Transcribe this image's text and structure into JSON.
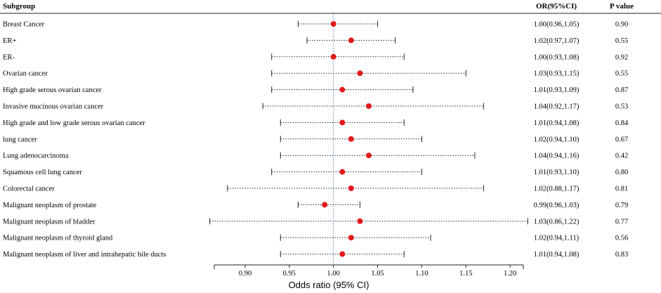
{
  "chart_data": {
    "type": "forest",
    "headers": {
      "subgroup": "Subgroup",
      "or_ci": "OR(95%CI)",
      "p_value": "P value"
    },
    "xlabel": "Odds ratio (95% CI)",
    "xlim": [
      0.865,
      1.215
    ],
    "xticks": [
      "0.90",
      "0.95",
      "1.00",
      "1.05",
      "1.10",
      "1.15",
      "1.20"
    ],
    "reference_line": 1.0,
    "point_color": "#e31a1c",
    "rows": [
      {
        "subgroup": "Breast Cancer",
        "or": 1.0,
        "lo": 0.96,
        "hi": 1.05,
        "or_ci": "1.00(0.96,1.05)",
        "p": "0.90"
      },
      {
        "subgroup": "ER+",
        "or": 1.02,
        "lo": 0.97,
        "hi": 1.07,
        "or_ci": "1.02(0.97,1.07)",
        "p": "0.55"
      },
      {
        "subgroup": "ER-",
        "or": 1.0,
        "lo": 0.93,
        "hi": 1.08,
        "or_ci": "1.00(0.93,1.08)",
        "p": "0.92"
      },
      {
        "subgroup": "Ovarian cancer",
        "or": 1.03,
        "lo": 0.93,
        "hi": 1.15,
        "or_ci": "1.03(0.93,1.15)",
        "p": "0.55"
      },
      {
        "subgroup": "High grade serous ovarian cancer",
        "or": 1.01,
        "lo": 0.93,
        "hi": 1.09,
        "or_ci": "1.01(0.93,1.09)",
        "p": "0.87"
      },
      {
        "subgroup": "Invasive mucinous ovarian cancer",
        "or": 1.04,
        "lo": 0.92,
        "hi": 1.17,
        "or_ci": "1.04(0.92,1.17)",
        "p": "0.53"
      },
      {
        "subgroup": "High grade and low grade serous ovarian cancer",
        "or": 1.01,
        "lo": 0.94,
        "hi": 1.08,
        "or_ci": "1.01(0.94,1.08)",
        "p": "0.84"
      },
      {
        "subgroup": "lung cancer",
        "or": 1.02,
        "lo": 0.94,
        "hi": 1.1,
        "or_ci": "1.02(0.94,1.10)",
        "p": "0.67"
      },
      {
        "subgroup": "Lung adenocarcinoma",
        "or": 1.04,
        "lo": 0.94,
        "hi": 1.16,
        "or_ci": "1.04(0.94,1.16)",
        "p": "0.42"
      },
      {
        "subgroup": "Squamous cell lung cancer",
        "or": 1.01,
        "lo": 0.93,
        "hi": 1.1,
        "or_ci": "1.01(0.93,1.10)",
        "p": "0.80"
      },
      {
        "subgroup": "Colorectal cancer",
        "or": 1.02,
        "lo": 0.88,
        "hi": 1.17,
        "or_ci": "1.02(0.88,1.17)",
        "p": "0.81"
      },
      {
        "subgroup": "Malignant neoplasm of prostate",
        "or": 0.99,
        "lo": 0.96,
        "hi": 1.03,
        "or_ci": "0.99(0.96,1.03)",
        "p": "0.79"
      },
      {
        "subgroup": "Malignant neoplasm of bladder",
        "or": 1.03,
        "lo": 0.86,
        "hi": 1.22,
        "or_ci": "1.03(0.86,1.22)",
        "p": "0.77"
      },
      {
        "subgroup": "Malignant neoplasm of thyroid gland",
        "or": 1.02,
        "lo": 0.94,
        "hi": 1.11,
        "or_ci": "1.02(0.94,1.11)",
        "p": "0.56"
      },
      {
        "subgroup": "Malignant neoplasm of liver and intrahepatic bile ducts",
        "or": 1.01,
        "lo": 0.94,
        "hi": 1.08,
        "or_ci": "1.01(0.94,1.08)",
        "p": "0.83"
      }
    ]
  }
}
